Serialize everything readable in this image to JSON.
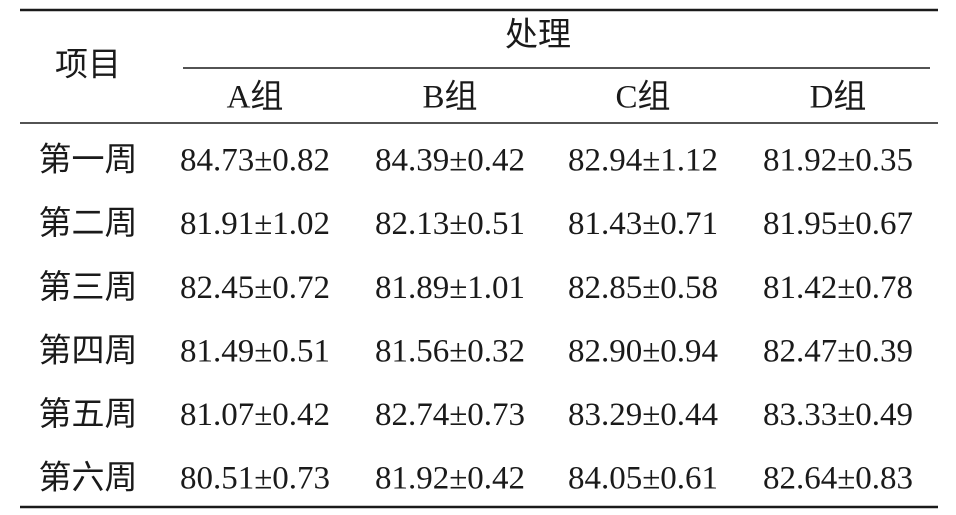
{
  "table": {
    "header": {
      "item": "项目",
      "group": "处理",
      "columns": [
        "A组",
        "B组",
        "C组",
        "D组"
      ]
    },
    "rows": [
      [
        "第一周",
        "84.73±0.82",
        "84.39±0.42",
        "82.94±1.12",
        "81.92±0.35"
      ],
      [
        "第二周",
        "81.91±1.02",
        "82.13±0.51",
        "81.43±0.71",
        "81.95±0.67"
      ],
      [
        "第三周",
        "82.45±0.72",
        "81.89±1.01",
        "82.85±0.58",
        "81.42±0.78"
      ],
      [
        "第四周",
        "81.49±0.51",
        "81.56±0.32",
        "82.90±0.94",
        "82.47±0.39"
      ],
      [
        "第五周",
        "81.07±0.42",
        "82.74±0.73",
        "83.29±0.44",
        "83.33±0.49"
      ],
      [
        "第六周",
        "80.51±0.73",
        "81.92±0.42",
        "84.05±0.61",
        "82.64±0.83"
      ]
    ]
  }
}
